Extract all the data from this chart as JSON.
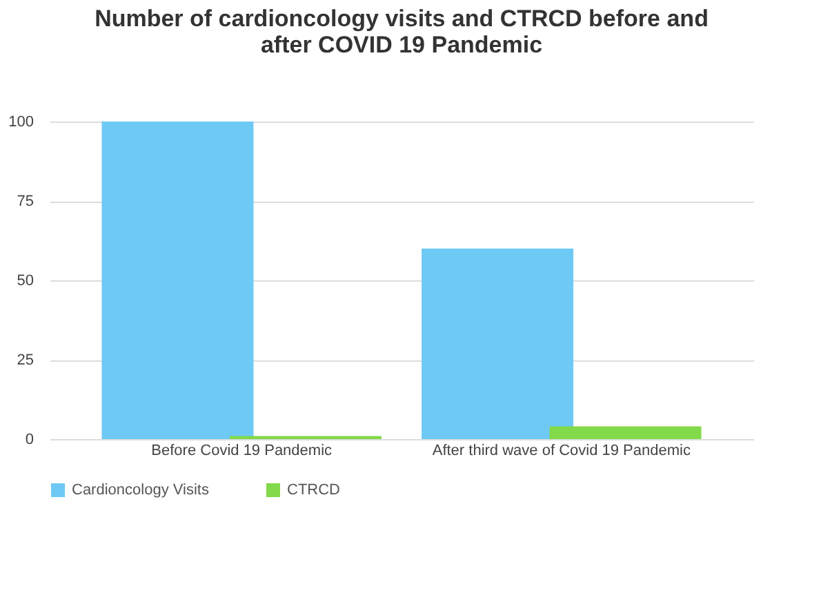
{
  "chart_data": {
    "type": "bar",
    "title": [
      "Number of cardioncology visits and CTRCD  before and",
      "after COVID 19 Pandemic"
    ],
    "categories": [
      "Before Covid 19 Pandemic",
      "After third wave of Covid 19 Pandemic"
    ],
    "series": [
      {
        "name": "Cardioncology Visits",
        "color": "#6ec9f5",
        "values": [
          100,
          60
        ]
      },
      {
        "name": "CTRCD",
        "color": "#82d94a",
        "values": [
          1,
          4
        ]
      }
    ],
    "ylim": [
      0,
      100
    ],
    "yticks": [
      0,
      25,
      50,
      75,
      100
    ],
    "grid": "y",
    "legend": "bottom"
  }
}
